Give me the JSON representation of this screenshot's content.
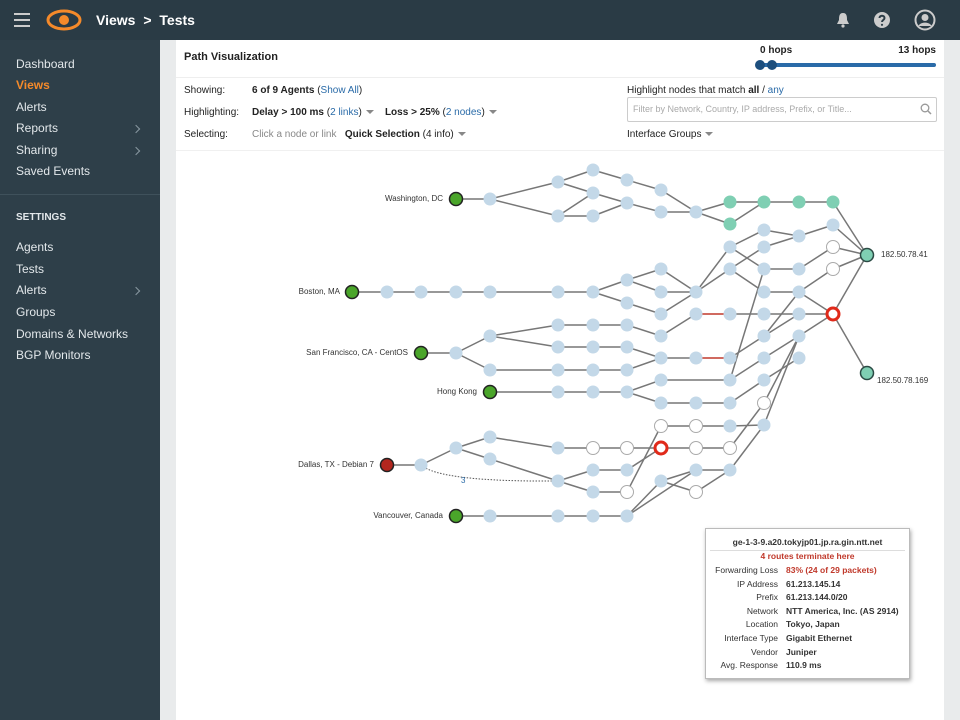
{
  "topbar": {
    "breadcrumb": [
      "Views",
      "Tests"
    ],
    "breadcrumb_separator": ">"
  },
  "sidebar": {
    "nav": [
      "Dashboard",
      "Views",
      "Alerts",
      "Reports",
      "Sharing",
      "Saved Events"
    ],
    "settings_title": "SETTINGS",
    "settings_items": [
      "Agents",
      "Tests",
      "Alerts",
      "Groups",
      "Domains & Networks",
      "BGP Monitors"
    ]
  },
  "panel": {
    "title": "Path Visualization",
    "hops_min": "0 hops",
    "hops_max": "13 hops",
    "showing": {
      "label": "Showing:",
      "value": "6 of 9 Agents",
      "note": [
        "(",
        "Show All",
        ")"
      ]
    },
    "highlighting": {
      "label": "Highlighting:",
      "delay": "Delay > 100 ms",
      "delay_note": [
        "(",
        "2 links",
        ")"
      ],
      "loss": "Loss > 25%",
      "loss_note": [
        "(",
        "2 nodes",
        ")"
      ]
    },
    "selecting": {
      "label": "Selecting:",
      "hint": "Click a node or link",
      "quick": "Quick Selection",
      "quick_note": "(4 info)"
    },
    "match": [
      "Highlight nodes that match",
      "all",
      "/",
      "any"
    ],
    "filter_placeholder": "Filter by Network, Country, IP address, Prefix, or Title...",
    "interface_groups": "Interface Groups"
  },
  "graph": {
    "agents": [
      "Washington, DC",
      "Boston, MA",
      "San Francisco, CA - CentOS",
      "Hong Kong",
      "Dallas, TX - Debian 7",
      "Vancouver, Canada"
    ],
    "targets": [
      "182.50.78.41",
      "182.50.78.169"
    ],
    "hidden_hops": "3"
  },
  "tooltip": {
    "title": "ge-1-3-9.a20.tokyjp01.jp.ra.gin.ntt.net",
    "subtitle": "4 routes terminate here",
    "rows": [
      [
        "Forwarding Loss",
        "83% (24 of 29 packets)"
      ],
      [
        "IP Address",
        "61.213.145.14"
      ],
      [
        "Prefix",
        "61.213.144.0/20"
      ],
      [
        "Network",
        "NTT America, Inc. (AS 2914)"
      ],
      [
        "Location",
        "Tokyo, Japan"
      ],
      [
        "Interface Type",
        "Gigabit Ethernet"
      ],
      [
        "Vendor",
        "Juniper"
      ],
      [
        "Avg. Response",
        "110.9 ms"
      ]
    ]
  }
}
